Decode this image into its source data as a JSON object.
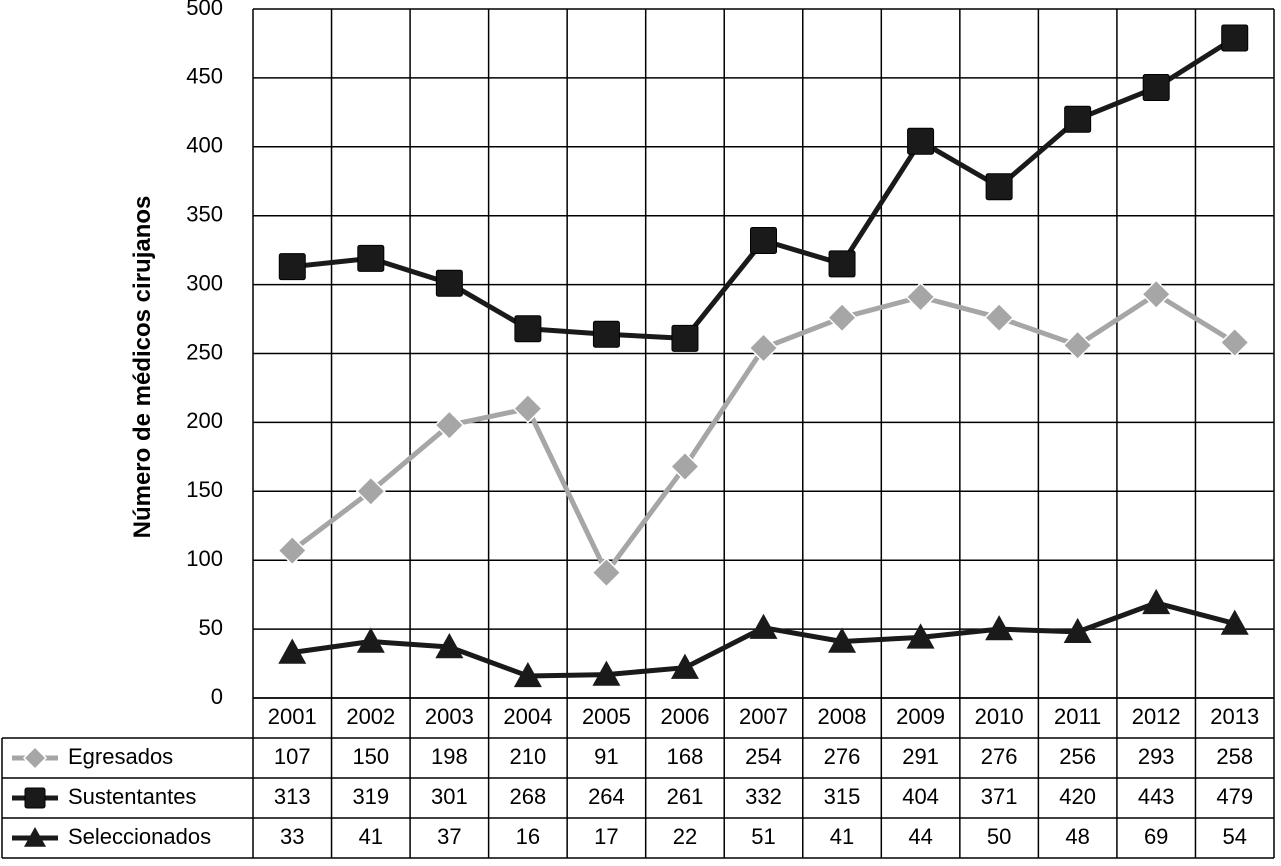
{
  "chart_data": {
    "type": "line",
    "ylabel": "Número de médicos cirujanos",
    "xlabel": "",
    "title": "",
    "ylim": [
      0,
      500
    ],
    "yticks": [
      0,
      50,
      100,
      150,
      200,
      250,
      300,
      350,
      400,
      450,
      500
    ],
    "grid": true,
    "legend": "data-table-below",
    "categories": [
      "2001",
      "2002",
      "2003",
      "2004",
      "2005",
      "2006",
      "2007",
      "2008",
      "2009",
      "2010",
      "2011",
      "2012",
      "2013"
    ],
    "series": [
      {
        "name": "Egresados",
        "marker": "diamond",
        "color": "#a6a6a6",
        "values": [
          107,
          150,
          198,
          210,
          91,
          168,
          254,
          276,
          291,
          276,
          256,
          293,
          258
        ]
      },
      {
        "name": "Sustentantes",
        "marker": "square",
        "color": "#1a1a1a",
        "values": [
          313,
          319,
          301,
          268,
          264,
          261,
          332,
          315,
          404,
          371,
          420,
          443,
          479
        ]
      },
      {
        "name": "Seleccionados",
        "marker": "triangle",
        "color": "#1a1a1a",
        "values": [
          33,
          41,
          37,
          16,
          17,
          22,
          51,
          41,
          44,
          50,
          48,
          69,
          54
        ]
      }
    ]
  }
}
